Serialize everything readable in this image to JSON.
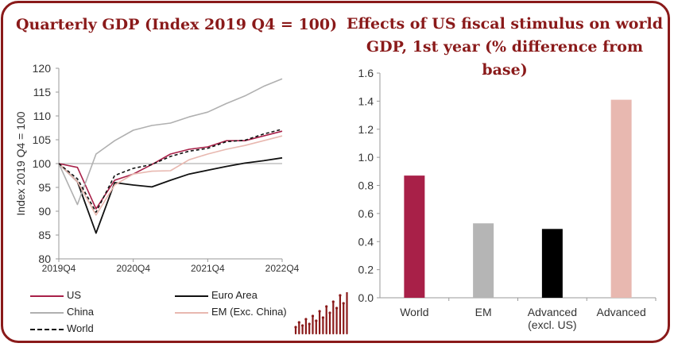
{
  "titles": {
    "left": "Quarterly GDP (Index 2019 Q4 = 100)",
    "right": "Effects of US fiscal stimulus on world GDP, 1st year (% difference from base)"
  },
  "chart_data": [
    {
      "type": "line",
      "title": "Quarterly GDP (Index 2019 Q4 = 100)",
      "ylabel": "Index 2019 Q4 = 100",
      "xlabel": "",
      "x": [
        "2019Q4",
        "2020Q1",
        "2020Q2",
        "2020Q3",
        "2020Q4",
        "2021Q1",
        "2021Q2",
        "2021Q3",
        "2021Q4",
        "2022Q1",
        "2022Q2",
        "2022Q3",
        "2022Q4"
      ],
      "xtick_labels": [
        "2019Q4",
        "2020Q4",
        "2021Q4",
        "2022Q4"
      ],
      "yticks": [
        80,
        85,
        90,
        95,
        100,
        105,
        110,
        115,
        120
      ],
      "ylim": [
        80,
        120
      ],
      "reference_line": 100,
      "grid": false,
      "legend_position": "bottom",
      "series": [
        {
          "name": "US",
          "color": "#a82048",
          "dash": "solid",
          "values": [
            100,
            99.2,
            90.5,
            96.5,
            97.8,
            99.8,
            102,
            103,
            103.5,
            104.8,
            104.8,
            105.8,
            106.8
          ]
        },
        {
          "name": "Euro Area",
          "color": "#111111",
          "dash": "solid",
          "values": [
            100,
            96.2,
            85.4,
            96,
            95.5,
            95.1,
            96.5,
            97.8,
            98.6,
            99.4,
            100.1,
            100.6,
            101.2
          ]
        },
        {
          "name": "China",
          "color": "#b0b0b0",
          "dash": "solid",
          "values": [
            100,
            91.4,
            102,
            104.8,
            107,
            108,
            108.5,
            109.8,
            110.8,
            112.6,
            114.2,
            116.2,
            117.8
          ]
        },
        {
          "name": "EM (Exc. China)",
          "color": "#e8b8b0",
          "dash": "solid",
          "values": [
            100,
            96.2,
            89.2,
            95.5,
            97.8,
            98.4,
            98.5,
            100.8,
            102,
            103,
            103.8,
            104.8,
            105.8
          ]
        },
        {
          "name": "World",
          "color": "#111111",
          "dash": "dashed",
          "values": [
            100,
            96.8,
            89.8,
            97.5,
            99,
            99.8,
            101.5,
            102.6,
            103.2,
            104.6,
            104.9,
            106.2,
            107.2
          ]
        }
      ]
    },
    {
      "type": "bar",
      "title": "Effects of US fiscal stimulus on world GDP, 1st year (% difference from base)",
      "xlabel": "",
      "ylabel": "",
      "categories": [
        "World",
        "EM",
        "Advanced\n(excl. US)",
        "Advanced"
      ],
      "values": [
        0.87,
        0.53,
        0.49,
        1.41
      ],
      "colors": [
        "#a82048",
        "#b5b5b5",
        "#000000",
        "#e8b8b0"
      ],
      "yticks": [
        "0.0",
        "0.2",
        "0.4",
        "0.6",
        "0.8",
        "1.0",
        "1.2",
        "1.4",
        "1.6"
      ],
      "ylim": [
        0,
        1.6
      ],
      "grid": false
    }
  ],
  "legend": [
    {
      "label": "US",
      "color": "#a82048",
      "dash": "solid"
    },
    {
      "label": "Euro Area",
      "color": "#111111",
      "dash": "solid"
    },
    {
      "label": "China",
      "color": "#b0b0b0",
      "dash": "solid"
    },
    {
      "label": "EM (Exc. China)",
      "color": "#e8b8b0",
      "dash": "solid"
    },
    {
      "label": "World",
      "color": "#111111",
      "dash": "dashed"
    }
  ],
  "logo": {
    "name": "bar-logo-icon",
    "color": "#8a1a1a"
  }
}
